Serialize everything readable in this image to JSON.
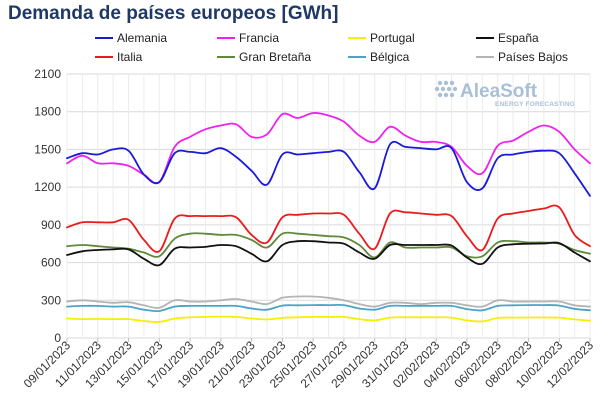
{
  "chart_data": {
    "type": "line",
    "title": "Demanda de países europeos [GWh]",
    "xlabel": "",
    "ylabel": "",
    "ylim": [
      0,
      2100
    ],
    "yticks": [
      0,
      300,
      600,
      900,
      1200,
      1500,
      1800,
      2100
    ],
    "grid": true,
    "legend_position": "top",
    "watermark": {
      "main": "AleaSoft",
      "sub": "ENERGY FORECASTING"
    },
    "x": [
      "09/01/2023",
      "10/01/2023",
      "11/01/2023",
      "12/01/2023",
      "13/01/2023",
      "14/01/2023",
      "15/01/2023",
      "16/01/2023",
      "17/01/2023",
      "18/01/2023",
      "19/01/2023",
      "20/01/2023",
      "21/01/2023",
      "22/01/2023",
      "23/01/2023",
      "24/01/2023",
      "25/01/2023",
      "26/01/2023",
      "27/01/2023",
      "28/01/2023",
      "29/01/2023",
      "30/01/2023",
      "31/01/2023",
      "01/02/2023",
      "02/02/2023",
      "03/02/2023",
      "04/02/2023",
      "05/02/2023",
      "06/02/2023",
      "07/02/2023",
      "08/02/2023",
      "09/02/2023",
      "10/02/2023",
      "11/02/2023",
      "12/02/2023"
    ],
    "x_tick_labels": [
      "09/01/2023",
      "11/01/2023",
      "13/01/2023",
      "15/01/2023",
      "17/01/2023",
      "19/01/2023",
      "21/01/2023",
      "23/01/2023",
      "25/01/2023",
      "27/01/2023",
      "29/01/2023",
      "31/01/2023",
      "02/02/2023",
      "04/02/2023",
      "06/02/2023",
      "08/02/2023",
      "10/02/2023",
      "12/02/2023"
    ],
    "series": [
      {
        "name": "Alemania",
        "color": "#1a1adb",
        "values": [
          1430,
          1470,
          1460,
          1500,
          1490,
          1300,
          1240,
          1470,
          1480,
          1470,
          1510,
          1440,
          1330,
          1220,
          1460,
          1460,
          1470,
          1480,
          1480,
          1320,
          1190,
          1540,
          1520,
          1510,
          1500,
          1510,
          1240,
          1190,
          1430,
          1460,
          1480,
          1490,
          1470,
          1310,
          1130
        ]
      },
      {
        "name": "Francia",
        "color": "#ee22ee",
        "values": [
          1390,
          1450,
          1390,
          1390,
          1370,
          1300,
          1240,
          1520,
          1600,
          1660,
          1690,
          1700,
          1600,
          1620,
          1780,
          1750,
          1790,
          1770,
          1720,
          1610,
          1560,
          1680,
          1610,
          1560,
          1560,
          1520,
          1370,
          1310,
          1530,
          1570,
          1640,
          1690,
          1640,
          1500,
          1390
        ]
      },
      {
        "name": "Portugal",
        "color": "#f4f000",
        "values": [
          155,
          150,
          152,
          150,
          150,
          135,
          128,
          155,
          165,
          168,
          170,
          168,
          155,
          148,
          160,
          165,
          168,
          168,
          168,
          150,
          140,
          162,
          165,
          165,
          165,
          162,
          140,
          132,
          160,
          162,
          163,
          163,
          162,
          148,
          138
        ]
      },
      {
        "name": "España",
        "color": "#111111",
        "values": [
          660,
          690,
          700,
          705,
          705,
          630,
          580,
          710,
          720,
          725,
          740,
          730,
          670,
          610,
          740,
          770,
          770,
          760,
          750,
          680,
          630,
          740,
          740,
          740,
          740,
          735,
          640,
          590,
          720,
          745,
          750,
          752,
          755,
          680,
          610
        ]
      },
      {
        "name": "Italia",
        "color": "#e81c1c",
        "values": [
          880,
          920,
          920,
          920,
          940,
          780,
          690,
          950,
          970,
          970,
          970,
          960,
          820,
          760,
          960,
          980,
          990,
          990,
          980,
          830,
          710,
          990,
          1000,
          990,
          980,
          970,
          810,
          700,
          950,
          990,
          1010,
          1030,
          1040,
          820,
          730
        ]
      },
      {
        "name": "Gran Bretaña",
        "color": "#5e8a3a",
        "values": [
          730,
          740,
          730,
          720,
          710,
          680,
          650,
          790,
          830,
          830,
          820,
          820,
          780,
          720,
          830,
          830,
          820,
          810,
          800,
          740,
          640,
          760,
          720,
          720,
          720,
          720,
          650,
          650,
          760,
          770,
          760,
          760,
          750,
          700,
          670
        ]
      },
      {
        "name": "Bélgica",
        "color": "#4aa4c8",
        "values": [
          250,
          255,
          255,
          250,
          250,
          225,
          215,
          250,
          255,
          255,
          255,
          255,
          235,
          225,
          258,
          260,
          262,
          262,
          262,
          235,
          225,
          255,
          255,
          255,
          255,
          255,
          230,
          220,
          255,
          260,
          262,
          262,
          258,
          232,
          220
        ]
      },
      {
        "name": "Países Bajos",
        "color": "#b4b4b4",
        "values": [
          290,
          300,
          290,
          280,
          285,
          260,
          240,
          300,
          290,
          290,
          300,
          310,
          290,
          270,
          320,
          330,
          330,
          320,
          300,
          270,
          250,
          280,
          280,
          270,
          280,
          280,
          260,
          250,
          300,
          290,
          290,
          290,
          290,
          260,
          250
        ]
      }
    ]
  }
}
